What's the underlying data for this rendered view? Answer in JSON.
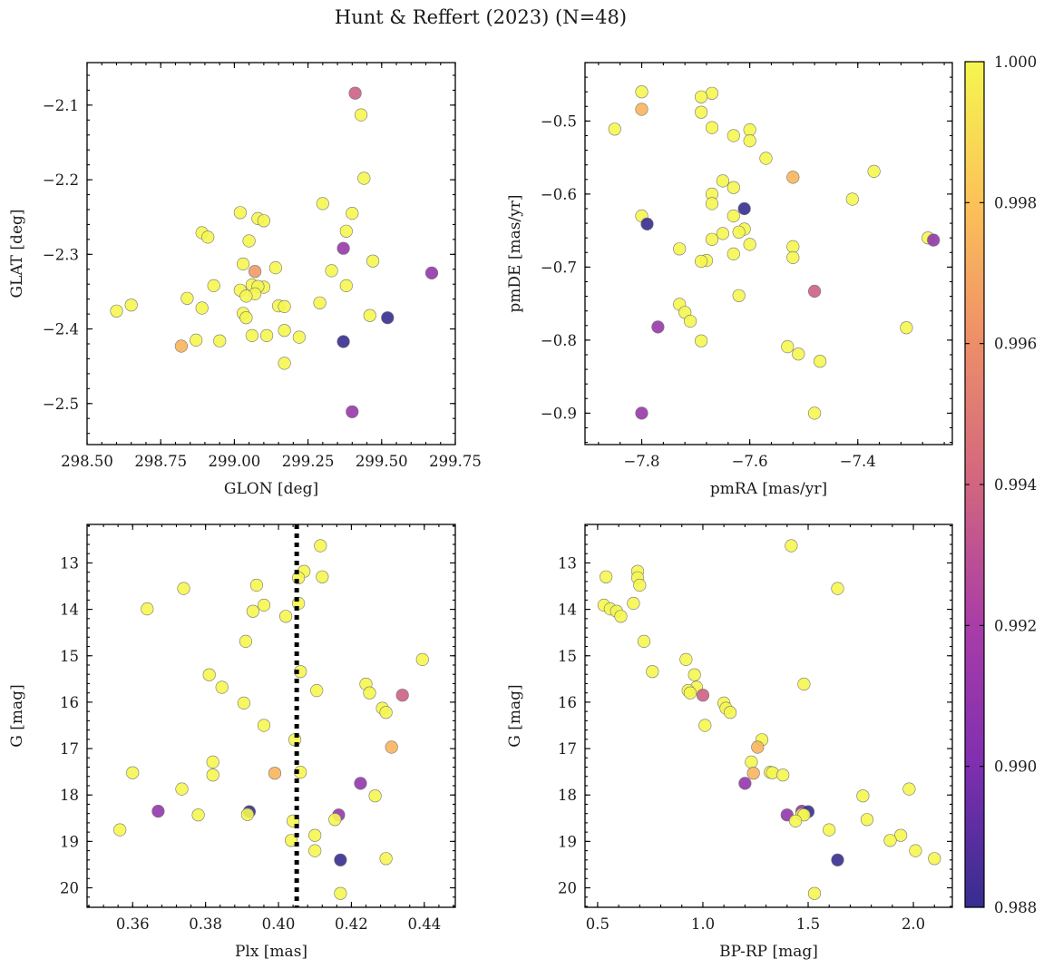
{
  "title": "Hunt & Reffert (2023) (N=48)",
  "colorbar": {
    "min": 0.988,
    "max": 1.0,
    "ticks": [
      0.988,
      0.99,
      0.992,
      0.994,
      0.996,
      0.998,
      1.0
    ],
    "tick_labels": [
      "0.988",
      "0.990",
      "0.992",
      "0.994",
      "0.996",
      "0.998",
      "1.000"
    ],
    "colormap": "plasma"
  },
  "chart_data": [
    {
      "type": "scatter",
      "xlabel": "GLON [deg]",
      "ylabel": "GLAT [deg]",
      "xlim": [
        298.5,
        299.75
      ],
      "ylim": [
        -2.555,
        -2.043
      ],
      "xticks": [
        298.5,
        298.75,
        299.0,
        299.25,
        299.5,
        299.75
      ],
      "xtick_labels": [
        "298.50",
        "298.75",
        "299.00",
        "299.25",
        "299.50",
        "299.75"
      ],
      "yticks": [
        -2.1,
        -2.2,
        -2.3,
        -2.4,
        -2.5
      ],
      "ytick_labels": [
        "−2.1",
        "−2.2",
        "−2.3",
        "−2.4",
        "−2.5"
      ],
      "points": [
        {
          "x": 299.41,
          "y": -2.084,
          "c": 0.9938
        },
        {
          "x": 299.43,
          "y": -2.113,
          "c": 1.0
        },
        {
          "x": 299.44,
          "y": -2.198,
          "c": 1.0
        },
        {
          "x": 299.3,
          "y": -2.232,
          "c": 1.0
        },
        {
          "x": 299.02,
          "y": -2.244,
          "c": 1.0
        },
        {
          "x": 299.4,
          "y": -2.245,
          "c": 1.0
        },
        {
          "x": 299.08,
          "y": -2.252,
          "c": 1.0
        },
        {
          "x": 299.1,
          "y": -2.255,
          "c": 1.0
        },
        {
          "x": 298.89,
          "y": -2.271,
          "c": 1.0
        },
        {
          "x": 299.38,
          "y": -2.269,
          "c": 1.0
        },
        {
          "x": 298.91,
          "y": -2.277,
          "c": 1.0
        },
        {
          "x": 299.05,
          "y": -2.282,
          "c": 1.0
        },
        {
          "x": 299.37,
          "y": -2.292,
          "c": 0.9912
        },
        {
          "x": 299.47,
          "y": -2.309,
          "c": 1.0
        },
        {
          "x": 299.03,
          "y": -2.313,
          "c": 1.0
        },
        {
          "x": 299.14,
          "y": -2.318,
          "c": 1.0
        },
        {
          "x": 299.07,
          "y": -2.323,
          "c": 0.9965
        },
        {
          "x": 299.33,
          "y": -2.322,
          "c": 1.0
        },
        {
          "x": 299.67,
          "y": -2.325,
          "c": 0.991
        },
        {
          "x": 299.1,
          "y": -2.344,
          "c": 1.0
        },
        {
          "x": 298.93,
          "y": -2.342,
          "c": 1.0
        },
        {
          "x": 299.06,
          "y": -2.341,
          "c": 1.0
        },
        {
          "x": 299.08,
          "y": -2.343,
          "c": 1.0
        },
        {
          "x": 299.38,
          "y": -2.342,
          "c": 1.0
        },
        {
          "x": 299.02,
          "y": -2.348,
          "c": 1.0
        },
        {
          "x": 299.07,
          "y": -2.353,
          "c": 1.0
        },
        {
          "x": 298.84,
          "y": -2.359,
          "c": 1.0
        },
        {
          "x": 299.04,
          "y": -2.356,
          "c": 1.0
        },
        {
          "x": 299.29,
          "y": -2.365,
          "c": 1.0
        },
        {
          "x": 298.65,
          "y": -2.368,
          "c": 1.0
        },
        {
          "x": 299.15,
          "y": -2.369,
          "c": 1.0
        },
        {
          "x": 299.17,
          "y": -2.37,
          "c": 1.0
        },
        {
          "x": 298.89,
          "y": -2.372,
          "c": 1.0
        },
        {
          "x": 298.6,
          "y": -2.376,
          "c": 1.0
        },
        {
          "x": 299.03,
          "y": -2.379,
          "c": 1.0
        },
        {
          "x": 299.46,
          "y": -2.382,
          "c": 1.0
        },
        {
          "x": 299.04,
          "y": -2.385,
          "c": 1.0
        },
        {
          "x": 299.52,
          "y": -2.385,
          "c": 0.988
        },
        {
          "x": 299.17,
          "y": -2.402,
          "c": 1.0
        },
        {
          "x": 299.06,
          "y": -2.409,
          "c": 1.0
        },
        {
          "x": 299.11,
          "y": -2.409,
          "c": 1.0
        },
        {
          "x": 299.22,
          "y": -2.411,
          "c": 1.0
        },
        {
          "x": 298.87,
          "y": -2.415,
          "c": 1.0
        },
        {
          "x": 298.95,
          "y": -2.416,
          "c": 1.0
        },
        {
          "x": 299.37,
          "y": -2.417,
          "c": 0.988
        },
        {
          "x": 298.82,
          "y": -2.423,
          "c": 0.9975
        },
        {
          "x": 299.17,
          "y": -2.446,
          "c": 1.0
        },
        {
          "x": 299.4,
          "y": -2.511,
          "c": 0.9912
        }
      ]
    },
    {
      "type": "scatter",
      "xlabel": "pmRA [mas/yr]",
      "ylabel": "pmDE [mas/yr]",
      "xlim": [
        -7.905,
        -7.225
      ],
      "ylim": [
        -0.943,
        -0.42
      ],
      "xticks": [
        -7.8,
        -7.6,
        -7.4
      ],
      "xtick_labels": [
        "−7.8",
        "−7.6",
        "−7.4"
      ],
      "yticks": [
        -0.5,
        -0.6,
        -0.7,
        -0.8,
        -0.9
      ],
      "ytick_labels": [
        "−0.5",
        "−0.6",
        "−0.7",
        "−0.8",
        "−0.9"
      ],
      "points": [
        {
          "x": -7.8,
          "y": -0.46,
          "c": 1.0
        },
        {
          "x": -7.67,
          "y": -0.462,
          "c": 1.0
        },
        {
          "x": -7.69,
          "y": -0.467,
          "c": 1.0
        },
        {
          "x": -7.8,
          "y": -0.484,
          "c": 0.9975
        },
        {
          "x": -7.69,
          "y": -0.488,
          "c": 1.0
        },
        {
          "x": -7.85,
          "y": -0.511,
          "c": 1.0
        },
        {
          "x": -7.67,
          "y": -0.509,
          "c": 1.0
        },
        {
          "x": -7.6,
          "y": -0.512,
          "c": 1.0
        },
        {
          "x": -7.63,
          "y": -0.52,
          "c": 1.0
        },
        {
          "x": -7.6,
          "y": -0.527,
          "c": 1.0
        },
        {
          "x": -7.57,
          "y": -0.551,
          "c": 1.0
        },
        {
          "x": -7.37,
          "y": -0.569,
          "c": 1.0
        },
        {
          "x": -7.52,
          "y": -0.577,
          "c": 0.9975
        },
        {
          "x": -7.65,
          "y": -0.582,
          "c": 1.0
        },
        {
          "x": -7.63,
          "y": -0.591,
          "c": 1.0
        },
        {
          "x": -7.67,
          "y": -0.6,
          "c": 1.0
        },
        {
          "x": -7.41,
          "y": -0.607,
          "c": 1.0
        },
        {
          "x": -7.67,
          "y": -0.613,
          "c": 1.0
        },
        {
          "x": -7.61,
          "y": -0.62,
          "c": 0.988
        },
        {
          "x": -7.8,
          "y": -0.63,
          "c": 1.0
        },
        {
          "x": -7.63,
          "y": -0.63,
          "c": 1.0
        },
        {
          "x": -7.79,
          "y": -0.641,
          "c": 0.988
        },
        {
          "x": -7.61,
          "y": -0.648,
          "c": 1.0
        },
        {
          "x": -7.62,
          "y": -0.652,
          "c": 1.0
        },
        {
          "x": -7.65,
          "y": -0.654,
          "c": 1.0
        },
        {
          "x": -7.27,
          "y": -0.66,
          "c": 1.0
        },
        {
          "x": -7.26,
          "y": -0.663,
          "c": 0.991
        },
        {
          "x": -7.67,
          "y": -0.662,
          "c": 1.0
        },
        {
          "x": -7.6,
          "y": -0.669,
          "c": 1.0
        },
        {
          "x": -7.52,
          "y": -0.672,
          "c": 1.0
        },
        {
          "x": -7.73,
          "y": -0.675,
          "c": 1.0
        },
        {
          "x": -7.63,
          "y": -0.682,
          "c": 1.0
        },
        {
          "x": -7.52,
          "y": -0.687,
          "c": 1.0
        },
        {
          "x": -7.68,
          "y": -0.691,
          "c": 1.0
        },
        {
          "x": -7.69,
          "y": -0.692,
          "c": 1.0
        },
        {
          "x": -7.48,
          "y": -0.733,
          "c": 0.9938
        },
        {
          "x": -7.62,
          "y": -0.739,
          "c": 1.0
        },
        {
          "x": -7.73,
          "y": -0.751,
          "c": 1.0
        },
        {
          "x": -7.72,
          "y": -0.762,
          "c": 1.0
        },
        {
          "x": -7.71,
          "y": -0.774,
          "c": 1.0
        },
        {
          "x": -7.77,
          "y": -0.782,
          "c": 0.9912
        },
        {
          "x": -7.31,
          "y": -0.783,
          "c": 1.0
        },
        {
          "x": -7.69,
          "y": -0.801,
          "c": 1.0
        },
        {
          "x": -7.53,
          "y": -0.809,
          "c": 1.0
        },
        {
          "x": -7.51,
          "y": -0.819,
          "c": 1.0
        },
        {
          "x": -7.47,
          "y": -0.829,
          "c": 1.0
        },
        {
          "x": -7.8,
          "y": -0.9,
          "c": 0.9912
        },
        {
          "x": -7.48,
          "y": -0.9,
          "c": 1.0
        }
      ]
    },
    {
      "type": "scatter",
      "xlabel": "Plx [mas]",
      "ylabel": "G [mag]",
      "xlim": [
        0.3475,
        0.4485
      ],
      "ylim": [
        20.42,
        12.17
      ],
      "y_inverted": true,
      "vline": {
        "x": 0.405,
        "style": "dotted",
        "color": "#000000"
      },
      "xticks": [
        0.36,
        0.38,
        0.4,
        0.42,
        0.44
      ],
      "xtick_labels": [
        "0.36",
        "0.38",
        "0.40",
        "0.42",
        "0.44"
      ],
      "yticks": [
        13,
        14,
        15,
        16,
        17,
        18,
        19,
        20
      ],
      "ytick_labels": [
        "13",
        "14",
        "15",
        "16",
        "17",
        "18",
        "19",
        "20"
      ],
      "points": [
        {
          "x": 0.4115,
          "y": 12.63,
          "c": 1.0
        },
        {
          "x": 0.407,
          "y": 13.18,
          "c": 1.0
        },
        {
          "x": 0.4055,
          "y": 13.32,
          "c": 1.0
        },
        {
          "x": 0.412,
          "y": 13.3,
          "c": 1.0
        },
        {
          "x": 0.394,
          "y": 13.48,
          "c": 1.0
        },
        {
          "x": 0.374,
          "y": 13.55,
          "c": 1.0
        },
        {
          "x": 0.4055,
          "y": 13.87,
          "c": 1.0
        },
        {
          "x": 0.396,
          "y": 13.91,
          "c": 1.0
        },
        {
          "x": 0.364,
          "y": 13.99,
          "c": 1.0
        },
        {
          "x": 0.393,
          "y": 14.04,
          "c": 1.0
        },
        {
          "x": 0.402,
          "y": 14.15,
          "c": 1.0
        },
        {
          "x": 0.391,
          "y": 14.69,
          "c": 1.0
        },
        {
          "x": 0.4395,
          "y": 15.08,
          "c": 1.0
        },
        {
          "x": 0.406,
          "y": 15.34,
          "c": 1.0
        },
        {
          "x": 0.381,
          "y": 15.41,
          "c": 1.0
        },
        {
          "x": 0.424,
          "y": 15.61,
          "c": 1.0
        },
        {
          "x": 0.3845,
          "y": 15.68,
          "c": 1.0
        },
        {
          "x": 0.4105,
          "y": 15.75,
          "c": 1.0
        },
        {
          "x": 0.425,
          "y": 15.8,
          "c": 1.0
        },
        {
          "x": 0.434,
          "y": 15.85,
          "c": 0.9938
        },
        {
          "x": 0.3905,
          "y": 16.02,
          "c": 1.0
        },
        {
          "x": 0.4285,
          "y": 16.13,
          "c": 1.0
        },
        {
          "x": 0.4295,
          "y": 16.22,
          "c": 1.0
        },
        {
          "x": 0.396,
          "y": 16.5,
          "c": 1.0
        },
        {
          "x": 0.4045,
          "y": 16.81,
          "c": 1.0
        },
        {
          "x": 0.431,
          "y": 16.97,
          "c": 0.9975
        },
        {
          "x": 0.382,
          "y": 17.29,
          "c": 1.0
        },
        {
          "x": 0.406,
          "y": 17.51,
          "c": 1.0
        },
        {
          "x": 0.36,
          "y": 17.52,
          "c": 1.0
        },
        {
          "x": 0.399,
          "y": 17.53,
          "c": 0.9975
        },
        {
          "x": 0.382,
          "y": 17.57,
          "c": 1.0
        },
        {
          "x": 0.4225,
          "y": 17.75,
          "c": 0.991
        },
        {
          "x": 0.3735,
          "y": 17.87,
          "c": 1.0
        },
        {
          "x": 0.4265,
          "y": 18.02,
          "c": 1.0
        },
        {
          "x": 0.367,
          "y": 18.35,
          "c": 0.991
        },
        {
          "x": 0.392,
          "y": 18.36,
          "c": 0.988
        },
        {
          "x": 0.3915,
          "y": 18.42,
          "c": 1.0
        },
        {
          "x": 0.378,
          "y": 18.43,
          "c": 1.0
        },
        {
          "x": 0.4165,
          "y": 18.43,
          "c": 0.991
        },
        {
          "x": 0.4155,
          "y": 18.53,
          "c": 1.0
        },
        {
          "x": 0.404,
          "y": 18.56,
          "c": 1.0
        },
        {
          "x": 0.3565,
          "y": 18.75,
          "c": 1.0
        },
        {
          "x": 0.41,
          "y": 18.87,
          "c": 1.0
        },
        {
          "x": 0.4035,
          "y": 18.98,
          "c": 1.0
        },
        {
          "x": 0.41,
          "y": 19.2,
          "c": 1.0
        },
        {
          "x": 0.4295,
          "y": 19.37,
          "c": 1.0
        },
        {
          "x": 0.417,
          "y": 19.4,
          "c": 0.988
        },
        {
          "x": 0.417,
          "y": 20.12,
          "c": 1.0
        }
      ]
    },
    {
      "type": "scatter",
      "xlabel": "BP-RP [mag]",
      "ylabel": "G [mag]",
      "xlim": [
        0.44,
        2.185
      ],
      "ylim": [
        20.42,
        12.17
      ],
      "y_inverted": true,
      "xticks": [
        0.5,
        1.0,
        1.5,
        2.0
      ],
      "xtick_labels": [
        "0.5",
        "1.0",
        "1.5",
        "2.0"
      ],
      "yticks": [
        13,
        14,
        15,
        16,
        17,
        18,
        19,
        20
      ],
      "ytick_labels": [
        "13",
        "14",
        "15",
        "16",
        "17",
        "18",
        "19",
        "20"
      ],
      "points": [
        {
          "x": 1.42,
          "y": 12.63,
          "c": 1.0
        },
        {
          "x": 0.69,
          "y": 13.18,
          "c": 1.0
        },
        {
          "x": 0.54,
          "y": 13.3,
          "c": 1.0
        },
        {
          "x": 0.69,
          "y": 13.32,
          "c": 1.0
        },
        {
          "x": 0.7,
          "y": 13.48,
          "c": 1.0
        },
        {
          "x": 1.64,
          "y": 13.55,
          "c": 1.0
        },
        {
          "x": 0.67,
          "y": 13.87,
          "c": 1.0
        },
        {
          "x": 0.53,
          "y": 13.91,
          "c": 1.0
        },
        {
          "x": 0.56,
          "y": 13.99,
          "c": 1.0
        },
        {
          "x": 0.59,
          "y": 14.04,
          "c": 1.0
        },
        {
          "x": 0.61,
          "y": 14.15,
          "c": 1.0
        },
        {
          "x": 0.72,
          "y": 14.69,
          "c": 1.0
        },
        {
          "x": 0.92,
          "y": 15.08,
          "c": 1.0
        },
        {
          "x": 0.76,
          "y": 15.34,
          "c": 1.0
        },
        {
          "x": 0.96,
          "y": 15.41,
          "c": 1.0
        },
        {
          "x": 1.48,
          "y": 15.61,
          "c": 1.0
        },
        {
          "x": 0.97,
          "y": 15.68,
          "c": 1.0
        },
        {
          "x": 0.93,
          "y": 15.75,
          "c": 1.0
        },
        {
          "x": 0.94,
          "y": 15.8,
          "c": 1.0
        },
        {
          "x": 1.0,
          "y": 15.85,
          "c": 0.9938
        },
        {
          "x": 1.1,
          "y": 16.02,
          "c": 1.0
        },
        {
          "x": 1.11,
          "y": 16.13,
          "c": 1.0
        },
        {
          "x": 1.13,
          "y": 16.22,
          "c": 1.0
        },
        {
          "x": 1.01,
          "y": 16.5,
          "c": 1.0
        },
        {
          "x": 1.28,
          "y": 16.81,
          "c": 1.0
        },
        {
          "x": 1.26,
          "y": 16.97,
          "c": 0.9975
        },
        {
          "x": 1.23,
          "y": 17.29,
          "c": 1.0
        },
        {
          "x": 1.32,
          "y": 17.51,
          "c": 1.0
        },
        {
          "x": 1.33,
          "y": 17.52,
          "c": 1.0
        },
        {
          "x": 1.24,
          "y": 17.53,
          "c": 0.9975
        },
        {
          "x": 1.38,
          "y": 17.57,
          "c": 1.0
        },
        {
          "x": 1.2,
          "y": 17.75,
          "c": 0.991
        },
        {
          "x": 1.98,
          "y": 17.87,
          "c": 1.0
        },
        {
          "x": 1.76,
          "y": 18.02,
          "c": 1.0
        },
        {
          "x": 1.47,
          "y": 18.35,
          "c": 0.991
        },
        {
          "x": 1.5,
          "y": 18.36,
          "c": 0.988
        },
        {
          "x": 1.47,
          "y": 18.42,
          "c": 1.0
        },
        {
          "x": 1.48,
          "y": 18.43,
          "c": 1.0
        },
        {
          "x": 1.4,
          "y": 18.43,
          "c": 0.991
        },
        {
          "x": 1.78,
          "y": 18.53,
          "c": 1.0
        },
        {
          "x": 1.44,
          "y": 18.56,
          "c": 1.0
        },
        {
          "x": 1.6,
          "y": 18.75,
          "c": 1.0
        },
        {
          "x": 1.94,
          "y": 18.87,
          "c": 1.0
        },
        {
          "x": 1.89,
          "y": 18.98,
          "c": 1.0
        },
        {
          "x": 2.01,
          "y": 19.2,
          "c": 1.0
        },
        {
          "x": 2.1,
          "y": 19.37,
          "c": 1.0
        },
        {
          "x": 1.64,
          "y": 19.4,
          "c": 0.988
        },
        {
          "x": 1.53,
          "y": 20.12,
          "c": 1.0
        }
      ]
    }
  ]
}
